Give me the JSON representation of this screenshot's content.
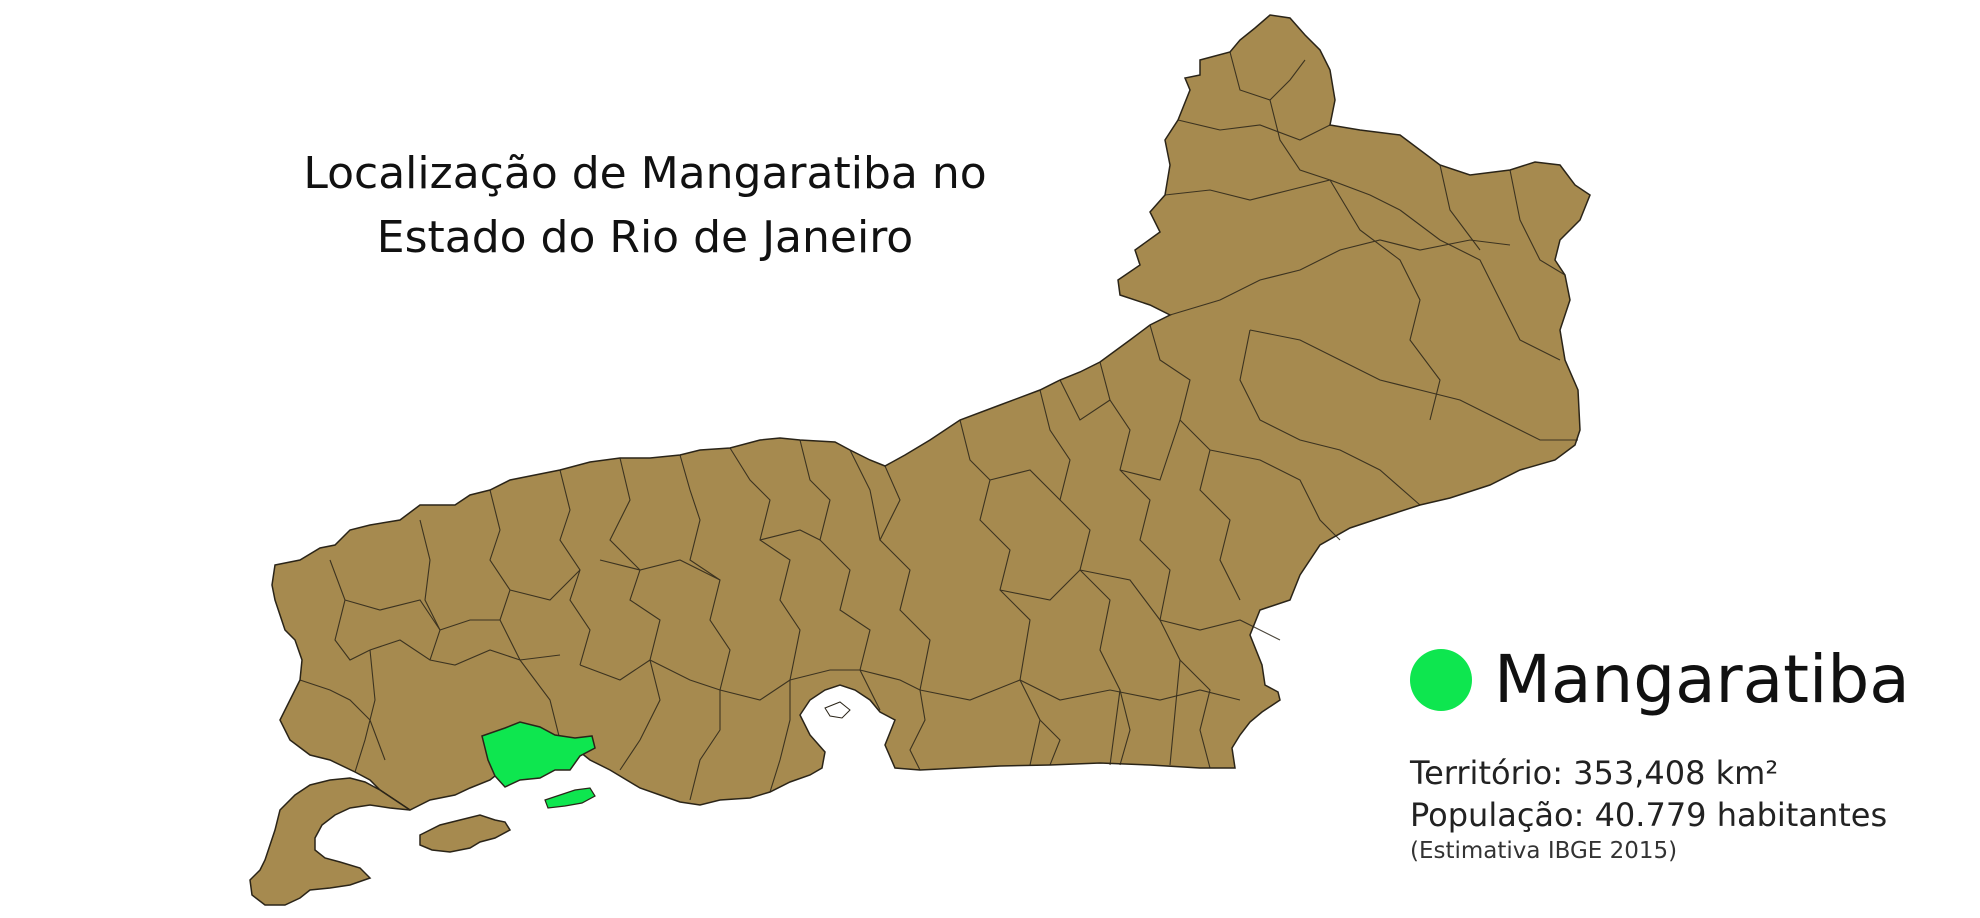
{
  "title": {
    "line1": "Localização de Mangaratiba no",
    "line2": "Estado do Rio de Janeiro"
  },
  "legend": {
    "municipality": "Mangaratiba",
    "territory": "Território: 353,408 km²",
    "population": "População: 40.779 habitantes",
    "source_note": "(Estimativa IBGE 2015)"
  },
  "colors": {
    "state_fill": "#a68a4f",
    "border": "#2a2418",
    "highlight": "#0ee64f",
    "background": "#ffffff"
  }
}
